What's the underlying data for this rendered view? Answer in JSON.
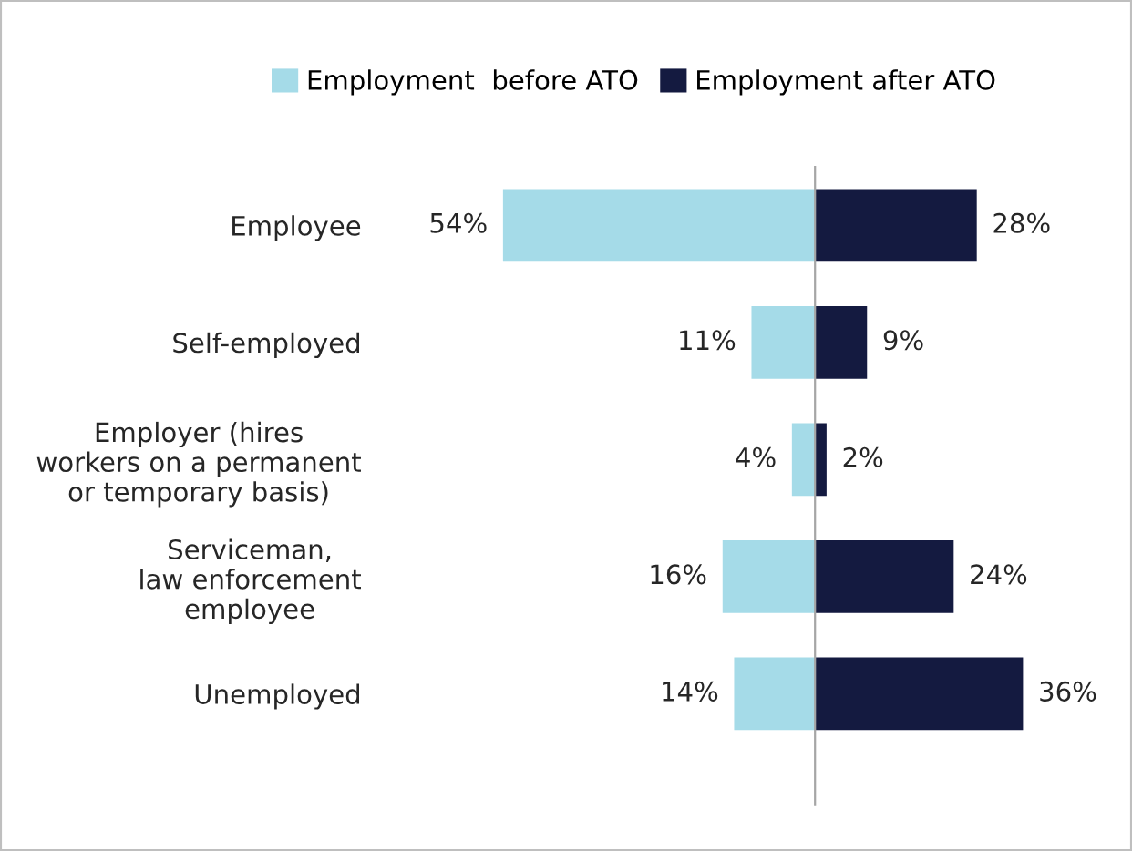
{
  "chart_data": [
    {
      "type": "bar",
      "orientation": "horizontal",
      "categories": [
        "Employee",
        "Self-employed",
        "Employer (hires\nworkers on a permanent\nor temporary basis)",
        "Serviceman,\nlaw enforcement\nemployee",
        "Unemployed"
      ],
      "tick_labels": "y",
      "legend": "top",
      "grid": false,
      "series": [
        {
          "name": "Employment  before ATO",
          "color": "#a5dbe8",
          "values": [
            54,
            11,
            4,
            16,
            14
          ],
          "value_labels": [
            "54%",
            "11%",
            "4%",
            "16%",
            "14%"
          ]
        }
      ]
    },
    {
      "type": "bar",
      "orientation": "horizontal",
      "categories": [
        null,
        null,
        null,
        null,
        null
      ],
      "tick_labels": false,
      "legend": "top",
      "grid": false,
      "series": [
        {
          "name": "Employment after ATO",
          "color": "#141a40",
          "values": [
            28,
            9,
            2,
            24,
            36
          ],
          "value_labels": [
            "28%",
            "9%",
            "2%",
            "24%",
            "36%"
          ]
        }
      ]
    }
  ]
}
